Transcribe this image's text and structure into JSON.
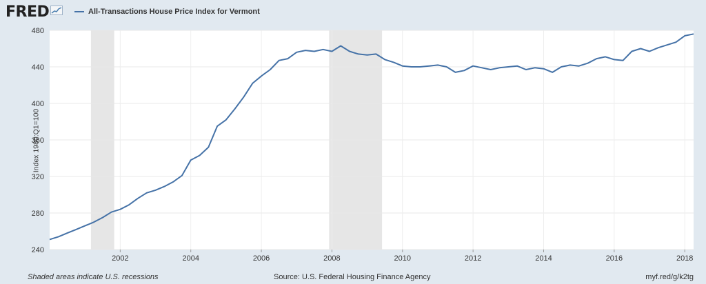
{
  "header": {
    "logo_text": "FRED",
    "legend_label": "All-Transactions House Price Index for Vermont",
    "series_color": "#4572a7"
  },
  "footer": {
    "note": "Shaded areas indicate U.S. recessions",
    "source": "Source: U.S. Federal Housing Finance Agency",
    "link": "myf.red/g/k2tg"
  },
  "chart_data": {
    "type": "line",
    "title": "",
    "xlabel": "",
    "ylabel": "Index 1980:Q1=100",
    "xlim": [
      2000.0,
      2018.25
    ],
    "ylim": [
      240,
      480
    ],
    "grid": true,
    "yticks": [
      240,
      280,
      320,
      360,
      400,
      440,
      480
    ],
    "xticks": [
      2002,
      2004,
      2006,
      2008,
      2010,
      2012,
      2014,
      2016,
      2018
    ],
    "recessions": [
      [
        2001.17,
        2001.83
      ],
      [
        2007.92,
        2009.42
      ]
    ],
    "series": [
      {
        "name": "All-Transactions House Price Index for Vermont",
        "color": "#4572a7",
        "x": [
          2000.0,
          2000.25,
          2000.5,
          2000.75,
          2001.0,
          2001.25,
          2001.5,
          2001.75,
          2002.0,
          2002.25,
          2002.5,
          2002.75,
          2003.0,
          2003.25,
          2003.5,
          2003.75,
          2004.0,
          2004.25,
          2004.5,
          2004.75,
          2005.0,
          2005.25,
          2005.5,
          2005.75,
          2006.0,
          2006.25,
          2006.5,
          2006.75,
          2007.0,
          2007.25,
          2007.5,
          2007.75,
          2008.0,
          2008.25,
          2008.5,
          2008.75,
          2009.0,
          2009.25,
          2009.5,
          2009.75,
          2010.0,
          2010.25,
          2010.5,
          2010.75,
          2011.0,
          2011.25,
          2011.5,
          2011.75,
          2012.0,
          2012.25,
          2012.5,
          2012.75,
          2013.0,
          2013.25,
          2013.5,
          2013.75,
          2014.0,
          2014.25,
          2014.5,
          2014.75,
          2015.0,
          2015.25,
          2015.5,
          2015.75,
          2016.0,
          2016.25,
          2016.5,
          2016.75,
          2017.0,
          2017.25,
          2017.5,
          2017.75,
          2018.0,
          2018.25
        ],
        "y": [
          251,
          254,
          258,
          262,
          266,
          270,
          275,
          281,
          284,
          289,
          296,
          302,
          305,
          309,
          314,
          321,
          338,
          343,
          352,
          375,
          382,
          394,
          407,
          422,
          430,
          437,
          447,
          449,
          456,
          458,
          457,
          459,
          457,
          463,
          457,
          454,
          453,
          454,
          448,
          445,
          441,
          440,
          440,
          441,
          442,
          440,
          434,
          436,
          441,
          439,
          437,
          439,
          440,
          441,
          437,
          439,
          438,
          434,
          440,
          442,
          441,
          444,
          449,
          451,
          448,
          447,
          457,
          460,
          457,
          461,
          464,
          467,
          474,
          476
        ]
      }
    ]
  }
}
